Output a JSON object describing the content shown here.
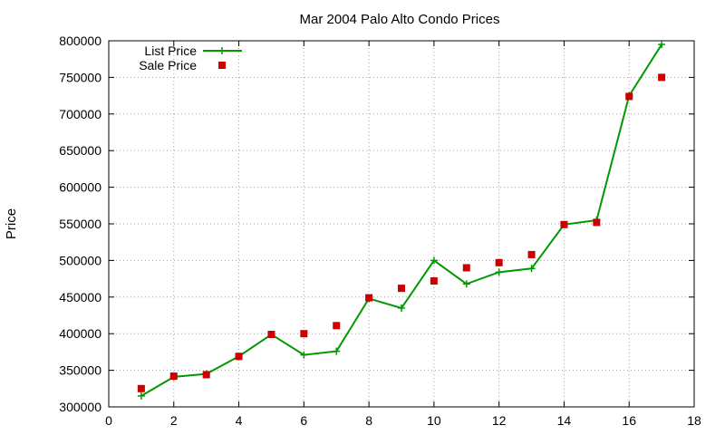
{
  "chart_data": {
    "type": "line",
    "title": "Mar 2004 Palo Alto Condo Prices",
    "xlabel": "",
    "ylabel": "Price",
    "xlim": [
      0,
      18
    ],
    "ylim": [
      300000,
      800000
    ],
    "xticks": [
      0,
      2,
      4,
      6,
      8,
      10,
      12,
      14,
      16,
      18
    ],
    "yticks": [
      300000,
      350000,
      400000,
      450000,
      500000,
      550000,
      600000,
      650000,
      700000,
      750000,
      800000
    ],
    "grid": true,
    "legend_position": "top-left",
    "series": [
      {
        "name": "List Price",
        "style": "line+cross",
        "color": "#009900",
        "x": [
          1,
          2,
          3,
          4,
          5,
          6,
          7,
          8,
          9,
          10,
          11,
          12,
          13,
          14,
          15,
          16,
          17
        ],
        "values": [
          315000,
          341000,
          345000,
          369000,
          399000,
          371000,
          376000,
          448000,
          435000,
          500000,
          468000,
          484000,
          489000,
          549000,
          555000,
          725000,
          795000
        ]
      },
      {
        "name": "Sale Price",
        "style": "square",
        "color": "#cc0000",
        "x": [
          1,
          2,
          3,
          4,
          5,
          6,
          7,
          8,
          9,
          10,
          11,
          12,
          13,
          14,
          15,
          16,
          17
        ],
        "values": [
          325000,
          342000,
          344000,
          369000,
          399000,
          400000,
          411000,
          449000,
          462000,
          472000,
          490000,
          497000,
          508000,
          549000,
          552000,
          724000,
          750000
        ]
      }
    ]
  }
}
